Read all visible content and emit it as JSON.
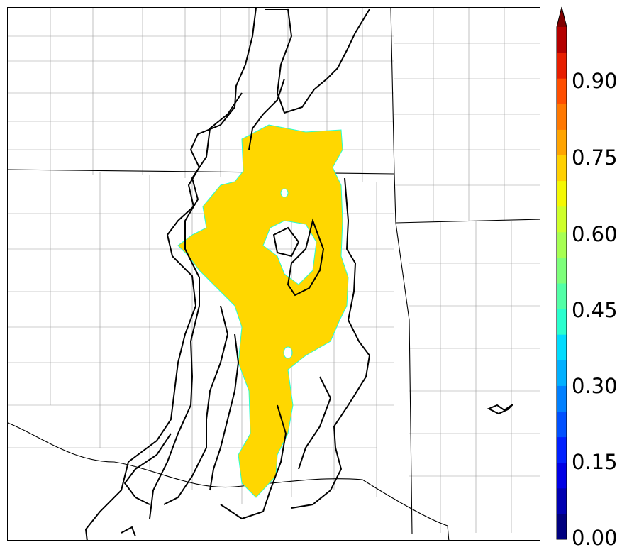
{
  "colorbar": {
    "tick_labels": [
      "0.00",
      "0.15",
      "0.30",
      "0.45",
      "0.60",
      "0.75",
      "0.90"
    ],
    "min": 0.0,
    "max": 1.0,
    "step": 0.05,
    "colors": [
      "#00007f",
      "#0000b2",
      "#0000e5",
      "#0020ff",
      "#0050ff",
      "#0080ff",
      "#00b0ff",
      "#00dcfe",
      "#29ffce",
      "#52ffa6",
      "#7dff7a",
      "#a6ff52",
      "#ceff29",
      "#f4f802",
      "#ffd000",
      "#ffa400",
      "#ff7800",
      "#ff4e00",
      "#e71e00",
      "#b40000"
    ],
    "extend_color": "#7f0000"
  },
  "map": {
    "fill_color": "#ffd700",
    "fill_edge_color": "#29ffce",
    "fill_value": 0.65,
    "contour_color": "#000000",
    "boundary_color": "#000000",
    "county_color": "#9a9a9a"
  }
}
